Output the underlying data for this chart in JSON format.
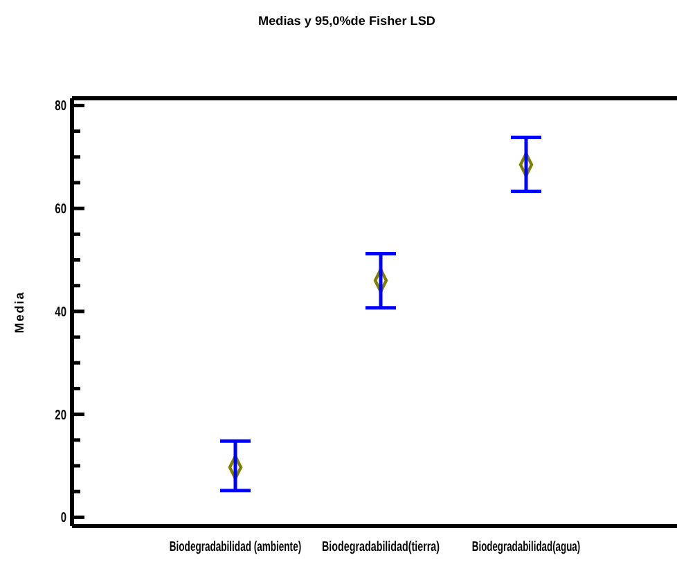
{
  "chart_data": {
    "type": "scatter",
    "title": "Medias y 95,0%de Fisher LSD",
    "ylabel": "Media",
    "categories": [
      "Biodegradabilidad (ambiente)",
      "Biodegradabilidad(tierra)",
      "Biodegradabilidad(agua)"
    ],
    "series": [
      {
        "color": "#808000",
        "values": [
          9.7,
          46.0,
          68.5
        ],
        "errors": [
          [
            5.2,
            14.8
          ],
          [
            40.7,
            51.2
          ],
          [
            63.3,
            73.8
          ]
        ]
      }
    ],
    "marker": "diamond",
    "grid": false,
    "ylim": [
      -1.7,
      81.4
    ],
    "yticks": [
      0,
      {
        "value": 5,
        "label": null
      },
      {
        "value": 10,
        "label": null
      },
      {
        "value": 15,
        "label": null
      },
      20,
      {
        "value": 25,
        "label": null
      },
      {
        "value": 30,
        "label": null
      },
      {
        "value": 35,
        "label": null
      },
      40,
      {
        "value": 45,
        "label": null
      },
      {
        "value": 50,
        "label": null
      },
      {
        "value": 55,
        "label": null
      },
      60,
      {
        "value": 65,
        "label": null
      },
      {
        "value": 70,
        "label": null
      },
      {
        "value": 75,
        "label": null
      },
      80
    ]
  }
}
